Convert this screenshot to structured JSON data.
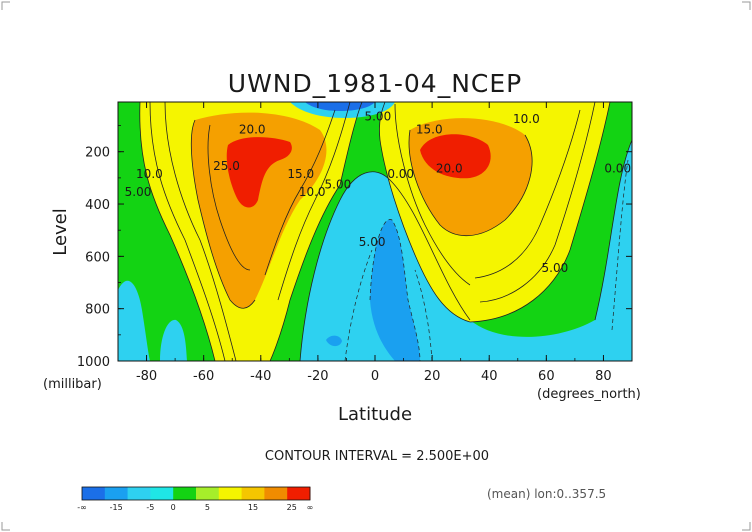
{
  "chart_data": {
    "type": "contour",
    "title": "UWND_1981-04_NCEP",
    "xlabel": "Latitude",
    "ylabel": "Level",
    "x_units": "(degrees_north)",
    "y_units": "(millibar)",
    "xlim": [
      -90,
      90
    ],
    "ylim": [
      1000,
      10
    ],
    "x_ticks": [
      "-80",
      "-60",
      "-40",
      "-20",
      "0",
      "20",
      "40",
      "60",
      "80"
    ],
    "x_tick_values": [
      -80,
      -60,
      -40,
      -20,
      0,
      20,
      40,
      60,
      80
    ],
    "y_ticks": [
      "200",
      "400",
      "600",
      "800",
      "1000"
    ],
    "y_tick_values": [
      200,
      400,
      600,
      800,
      1000
    ],
    "contour_interval_text": "CONTOUR INTERVAL = 2.500E+00",
    "footer_text": "(mean) lon:0..357.5",
    "contour_labels": [
      {
        "text": "20.0",
        "x": -43,
        "y": 130
      },
      {
        "text": "25.0",
        "x": -52,
        "y": 270
      },
      {
        "text": "10.0",
        "x": -79,
        "y": 300
      },
      {
        "text": "5.00",
        "x": -83,
        "y": 370
      },
      {
        "text": "15.0",
        "x": -26,
        "y": 300
      },
      {
        "text": "10.0",
        "x": -22,
        "y": 370
      },
      {
        "text": "5.00",
        "x": -13,
        "y": 340
      },
      {
        "text": "5.00",
        "x": 1,
        "y": 80
      },
      {
        "text": "0.00",
        "x": 9,
        "y": 300
      },
      {
        "text": "5.00",
        "x": -1,
        "y": 560
      },
      {
        "text": "15.0",
        "x": 19,
        "y": 130
      },
      {
        "text": "20.0",
        "x": 26,
        "y": 280
      },
      {
        "text": "10.0",
        "x": 53,
        "y": 90
      },
      {
        "text": "5.00",
        "x": 63,
        "y": 660
      },
      {
        "text": "0.00",
        "x": 85,
        "y": 280
      }
    ],
    "colorbar": {
      "labels": [
        "-∞",
        "-15",
        "-5",
        "0",
        "5",
        "15",
        "25",
        "∞"
      ],
      "colors": [
        "#1b6fe8",
        "#1aa0f0",
        "#2ed1f0",
        "#1fe6e6",
        "#13d313",
        "#a6ee2a",
        "#f5f500",
        "#f5c600",
        "#f08c00",
        "#f01e00"
      ]
    },
    "grid": false,
    "legend": "colorbar bottom-left"
  }
}
